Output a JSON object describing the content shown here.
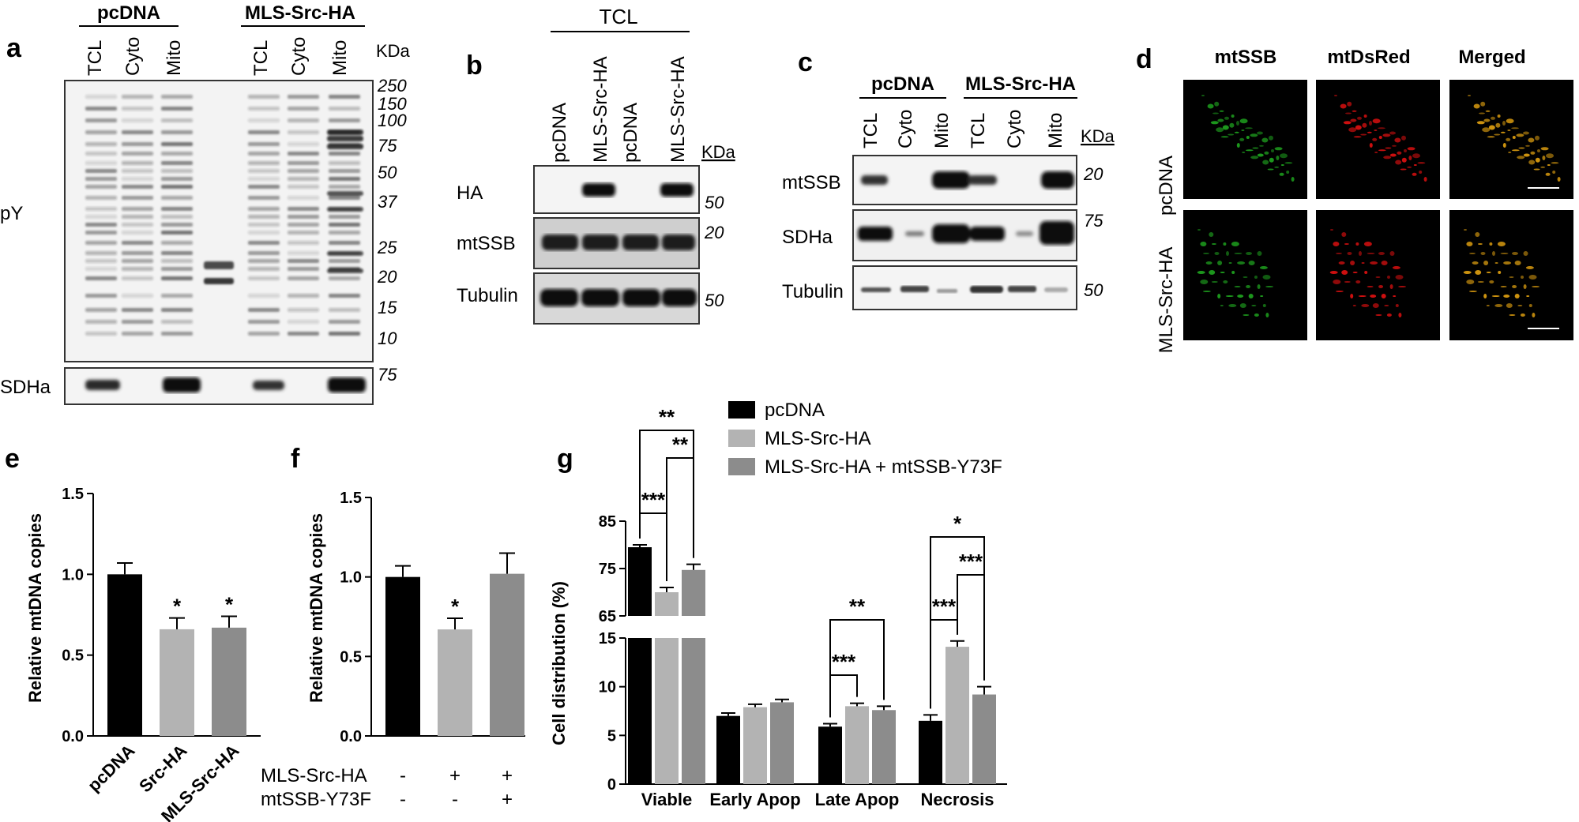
{
  "panels": {
    "a": {
      "label": "a",
      "groups": [
        "pcDNA",
        "MLS-Src-HA"
      ],
      "lanes": [
        "TCL",
        "Cyto",
        "Mito",
        "TCL",
        "Cyto",
        "Mito"
      ],
      "kda_label": "KDa",
      "markers": [
        "250",
        "150",
        "100",
        "75",
        "50",
        "37",
        "25",
        "20",
        "15",
        "10"
      ],
      "sdha_marker": "75",
      "row_labels": [
        "pY",
        "SDHa"
      ]
    },
    "b": {
      "label": "b",
      "header": "TCL",
      "lanes": [
        "pcDNA",
        "MLS-Src-HA",
        "pcDNA",
        "MLS-Src-HA"
      ],
      "kda_label": "KDa",
      "rows": [
        {
          "label": "HA",
          "marker": "50"
        },
        {
          "label": "mtSSB",
          "marker": "20"
        },
        {
          "label": "Tubulin",
          "marker": "50"
        }
      ]
    },
    "c": {
      "label": "c",
      "groups": [
        "pcDNA",
        "MLS-Src-HA"
      ],
      "lanes": [
        "TCL",
        "Cyto",
        "Mito",
        "TCL",
        "Cyto",
        "Mito"
      ],
      "kda_label": "KDa",
      "rows": [
        {
          "label": "mtSSB",
          "marker": "20"
        },
        {
          "label": "SDHa",
          "marker": "75"
        },
        {
          "label": "Tubulin",
          "marker": "50"
        }
      ]
    },
    "d": {
      "label": "d",
      "columns": [
        "mtSSB",
        "mtDsRed",
        "Merged"
      ],
      "rows": [
        "pcDNA",
        "MLS-Src-HA"
      ],
      "colors": {
        "green": "#1fa51f",
        "red": "#e01010",
        "merged": "#e0a010"
      }
    }
  },
  "chart_data": [
    {
      "panel": "e",
      "type": "bar",
      "ylabel": "Relative mtDNA copies",
      "ylim": [
        0,
        1.5
      ],
      "yticks": [
        "0.0",
        "0.5",
        "1.0",
        "1.5"
      ],
      "categories": [
        "pcDNA",
        "Src-HA",
        "MLS-Src-HA"
      ],
      "values": [
        1.0,
        0.66,
        0.67
      ],
      "errors": [
        0.07,
        0.07,
        0.07
      ],
      "colors": [
        "#000000",
        "#b3b3b3",
        "#8c8c8c"
      ],
      "significance": [
        "",
        "*",
        "*"
      ]
    },
    {
      "panel": "f",
      "type": "bar",
      "ylabel": "Relative mtDNA copies",
      "ylim": [
        0,
        1.5
      ],
      "yticks": [
        "0.0",
        "0.5",
        "1.0",
        "1.5"
      ],
      "values": [
        1.0,
        0.67,
        1.02
      ],
      "errors": [
        0.07,
        0.07,
        0.13
      ],
      "colors": [
        "#000000",
        "#b3b3b3",
        "#8c8c8c"
      ],
      "significance": [
        "",
        "*",
        ""
      ],
      "conditions": [
        {
          "label": "MLS-Src-HA",
          "values": [
            "-",
            "+",
            "+"
          ]
        },
        {
          "label": "mtSSB-Y73F",
          "values": [
            "-",
            "-",
            "+"
          ]
        }
      ]
    },
    {
      "panel": "g",
      "type": "bar",
      "ylabel": "Cell distribution (%)",
      "axis_break": {
        "lower": [
          0,
          15
        ],
        "upper": [
          65,
          85
        ]
      },
      "yticks_lower": [
        "0",
        "5",
        "10",
        "15"
      ],
      "yticks_upper": [
        "65",
        "75",
        "85"
      ],
      "categories": [
        "Viable",
        "Early Apop",
        "Late Apop",
        "Necrosis"
      ],
      "series": [
        {
          "name": "pcDNA",
          "color": "#000000",
          "values": [
            79.5,
            7.0,
            5.9,
            6.5
          ],
          "errors": [
            0.5,
            0.3,
            0.3,
            0.6
          ]
        },
        {
          "name": "MLS-Src-HA",
          "color": "#b3b3b3",
          "values": [
            70.0,
            7.9,
            8.0,
            14.1
          ],
          "errors": [
            1.0,
            0.3,
            0.3,
            0.6
          ]
        },
        {
          "name": "MLS-Src-HA + mtSSB-Y73F",
          "color": "#8c8c8c",
          "values": [
            74.7,
            8.4,
            7.6,
            9.2
          ],
          "errors": [
            1.2,
            0.3,
            0.4,
            0.8
          ]
        }
      ],
      "comparisons": [
        {
          "cat": 0,
          "from": 0,
          "to": 1,
          "label": "***"
        },
        {
          "cat": 0,
          "from": 1,
          "to": 2,
          "label": "**"
        },
        {
          "cat": 0,
          "from": 0,
          "to": 2,
          "label": "**"
        },
        {
          "cat": 2,
          "from": 0,
          "to": 1,
          "label": "***"
        },
        {
          "cat": 2,
          "from": 0,
          "to": 2,
          "label": "**"
        },
        {
          "cat": 3,
          "from": 0,
          "to": 1,
          "label": "***"
        },
        {
          "cat": 3,
          "from": 1,
          "to": 2,
          "label": "***"
        },
        {
          "cat": 3,
          "from": 0,
          "to": 2,
          "label": "*"
        }
      ]
    }
  ],
  "panel_labels": {
    "e": "e",
    "f": "f",
    "g": "g"
  }
}
